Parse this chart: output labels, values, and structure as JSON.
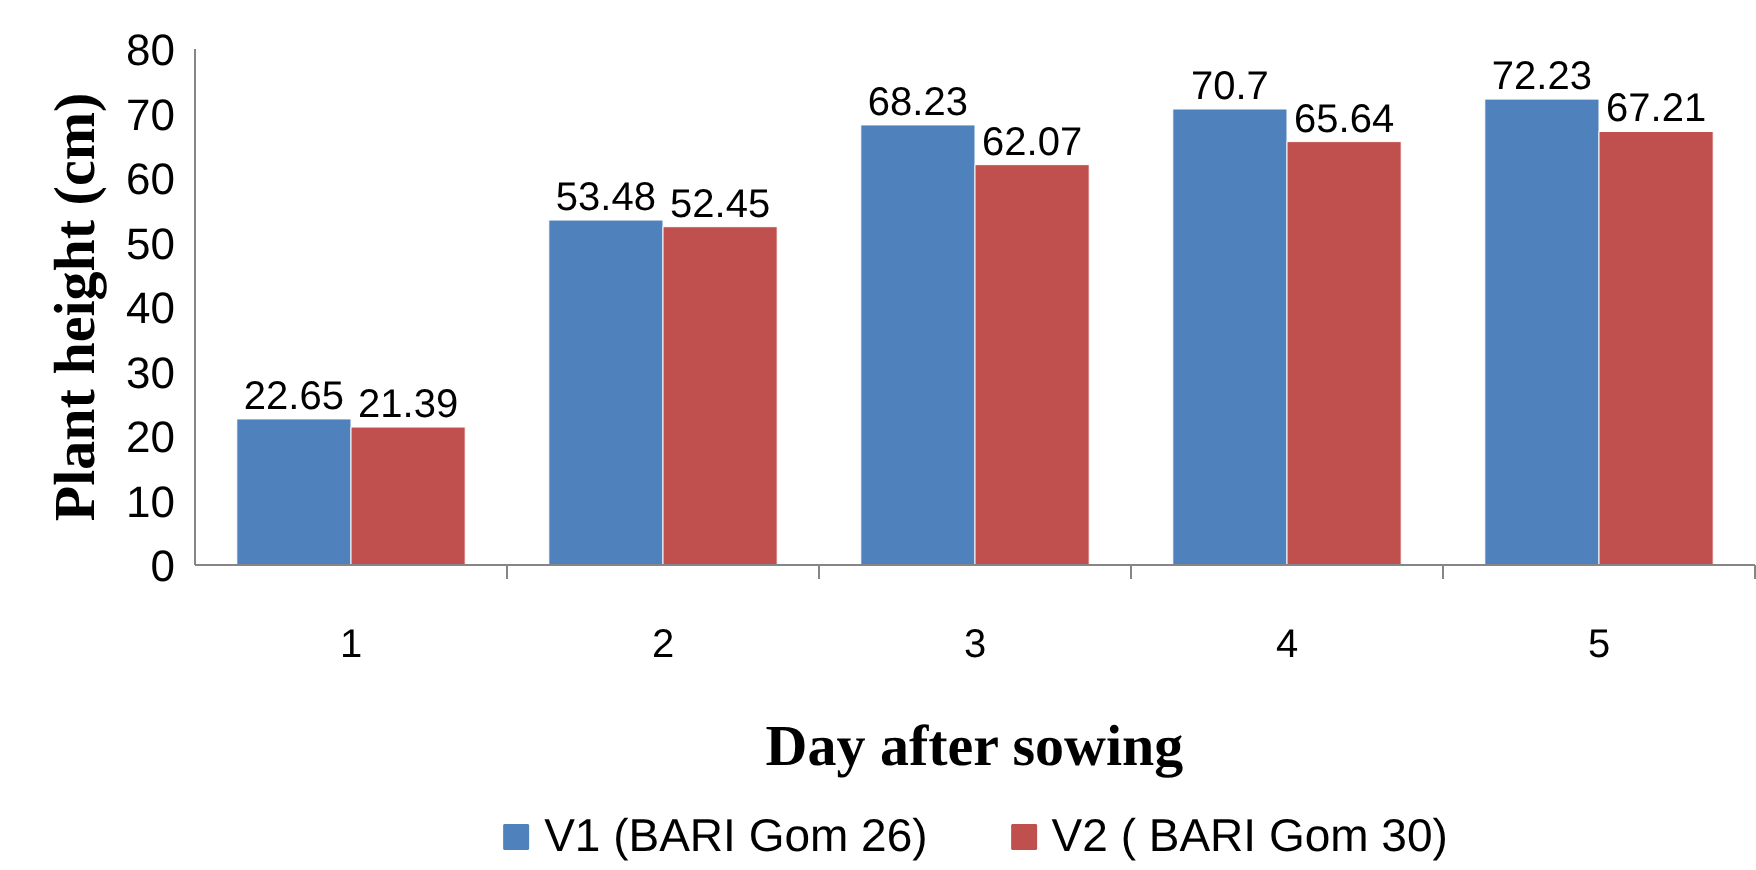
{
  "chart_data": {
    "type": "bar",
    "xlabel": "Day after sowing",
    "ylabel": "Plant height (cm)",
    "categories": [
      "1",
      "2",
      "3",
      "4",
      "5"
    ],
    "series": [
      {
        "name": "V1 (BARI Gom 26)",
        "color": "#4f81bd",
        "values": [
          22.65,
          53.48,
          68.23,
          70.7,
          72.23
        ]
      },
      {
        "name": "V2 ( BARI Gom 30)",
        "color": "#c0504d",
        "values": [
          21.39,
          52.45,
          62.07,
          65.64,
          67.21
        ]
      }
    ],
    "ylim": [
      0,
      80
    ],
    "yticks": [
      0,
      10,
      20,
      30,
      40,
      50,
      60,
      70,
      80
    ],
    "data_labels": true,
    "legend": "bottom"
  }
}
